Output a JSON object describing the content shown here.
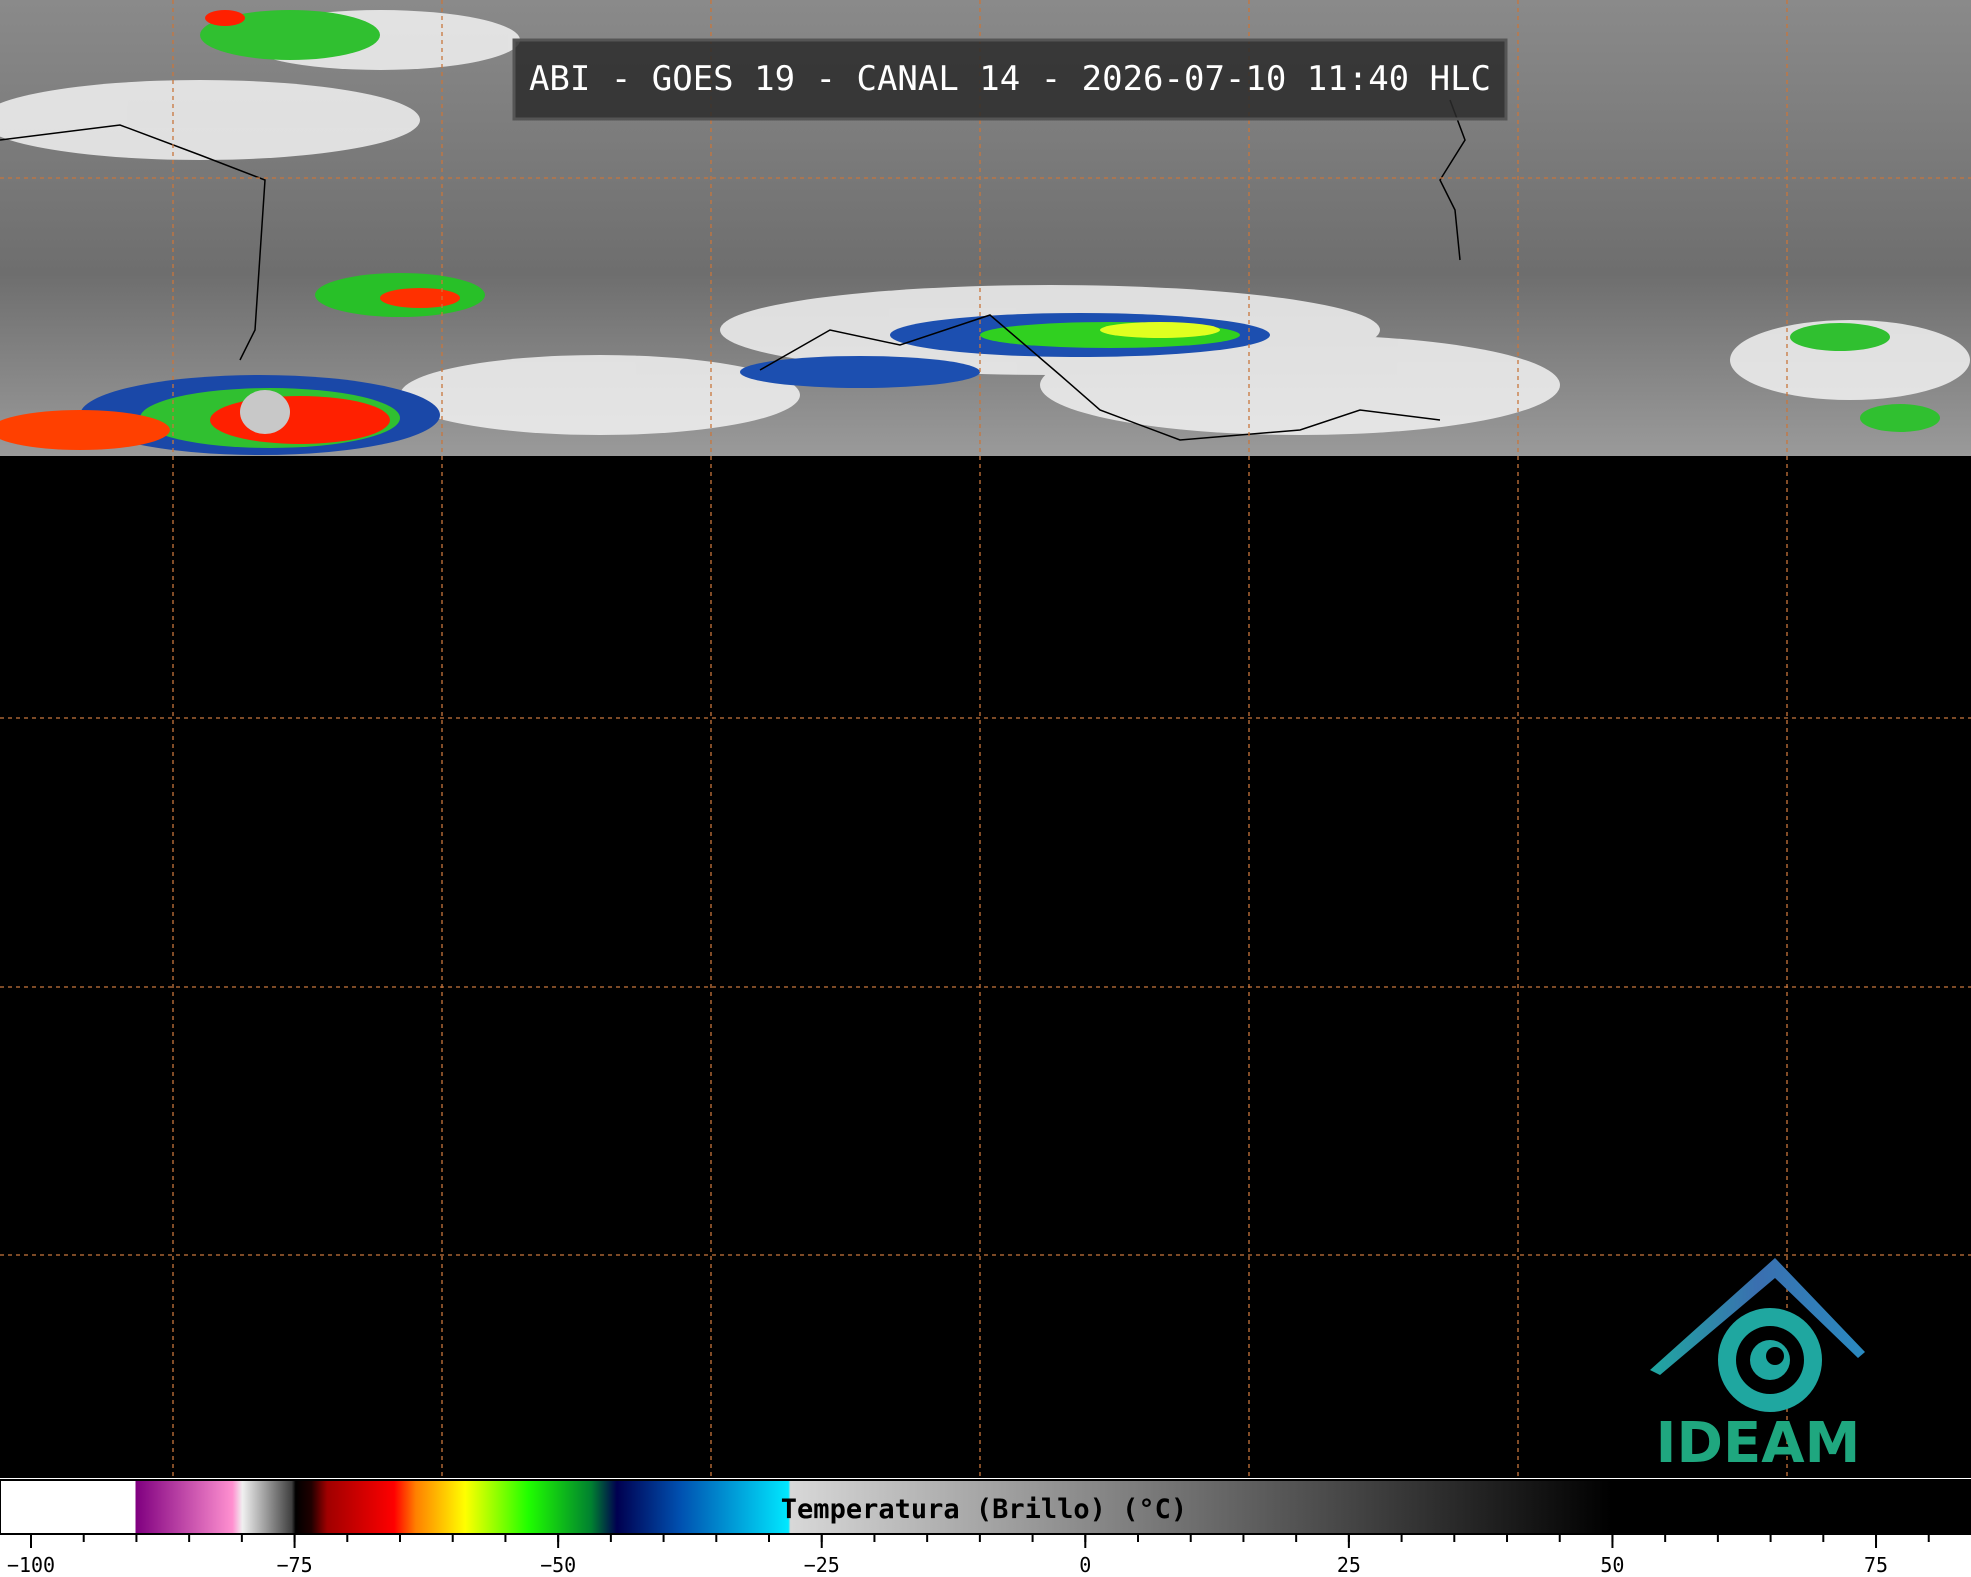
{
  "header": {
    "title": "ABI - GOES 19 - CANAL 14 - 2026-07-10 11:40 HLC"
  },
  "colorbar": {
    "label": "Temperatura (Brillo) (°C)",
    "ticks": [
      {
        "value": -100,
        "label": "−100"
      },
      {
        "value": -75,
        "label": "−75"
      },
      {
        "value": -50,
        "label": "−50"
      },
      {
        "value": -25,
        "label": "−25"
      },
      0,
      25,
      50,
      75
    ],
    "minor_ticks": [
      -100,
      -95,
      -90,
      -85,
      -80,
      -75,
      -70,
      -65,
      -60,
      -55,
      -50,
      -45,
      -40,
      -35,
      -30,
      -25,
      -20,
      -15,
      -10,
      -5,
      0,
      5,
      10,
      15,
      20,
      25,
      30,
      35,
      40,
      45,
      50,
      55,
      60,
      65,
      70,
      75,
      80
    ]
  },
  "logo": {
    "text": "IDEAM"
  }
}
